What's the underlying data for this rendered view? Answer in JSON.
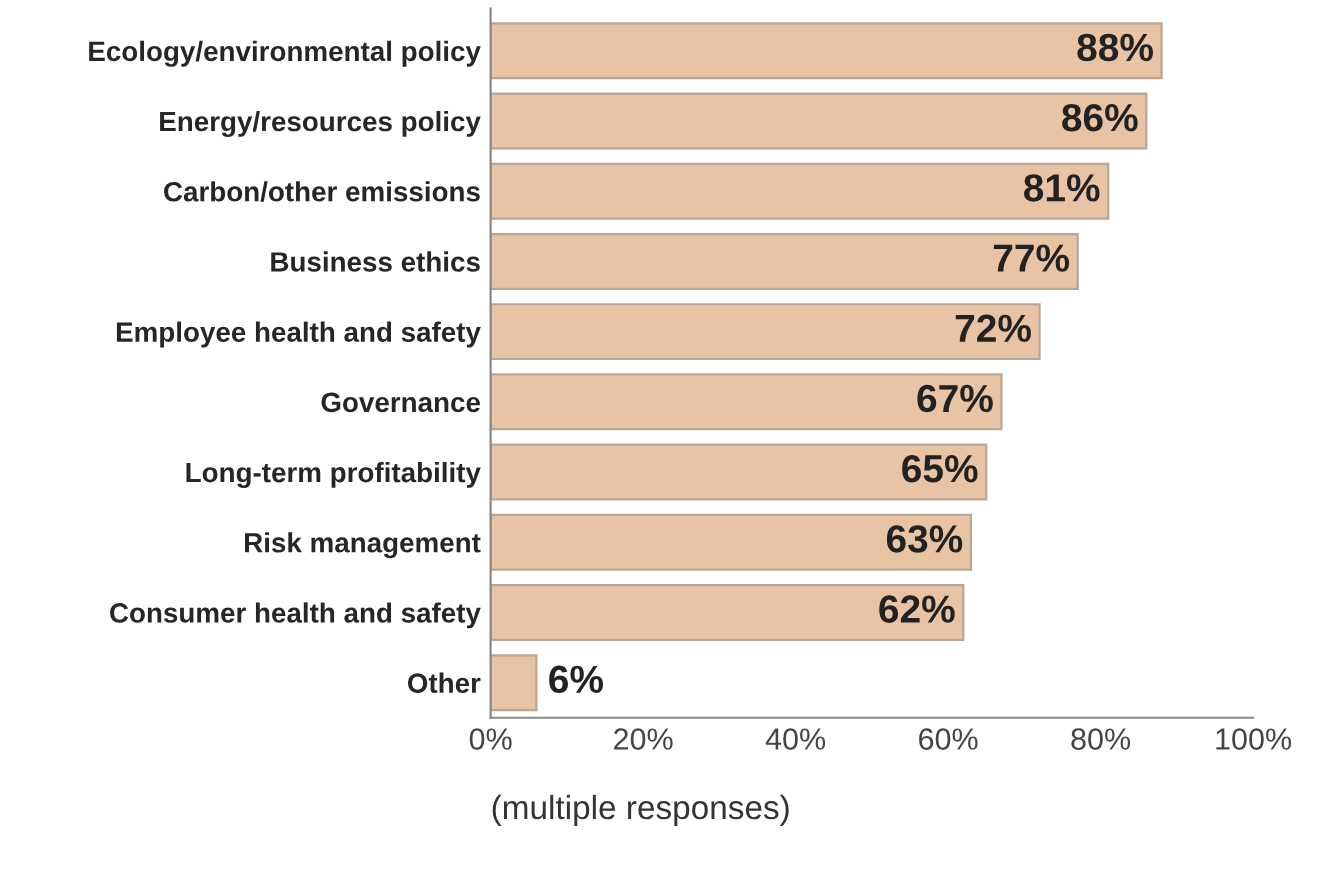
{
  "chart_data": {
    "type": "bar",
    "orientation": "horizontal",
    "categories": [
      "Ecology/environmental policy",
      "Energy/resources policy",
      "Carbon/other emissions",
      "Business ethics",
      "Employee health and safety",
      "Governance",
      "Long-term profitability",
      "Risk management",
      "Consumer health and safety",
      "Other"
    ],
    "values": [
      88,
      86,
      81,
      77,
      72,
      67,
      65,
      63,
      62,
      6
    ],
    "value_labels": [
      "88%",
      "86%",
      "81%",
      "77%",
      "72%",
      "67%",
      "65%",
      "63%",
      "62%",
      "6%"
    ],
    "color": "#e8c4a4",
    "xlim": [
      0,
      100
    ],
    "xticks": [
      {
        "value": 0,
        "label": "0%"
      },
      {
        "value": 20,
        "label": "20%"
      },
      {
        "value": 40,
        "label": "40%"
      },
      {
        "value": 60,
        "label": "60%"
      },
      {
        "value": 80,
        "label": "80%"
      },
      {
        "value": 100,
        "label": "100%"
      }
    ],
    "xlabel": "(multiple responses)",
    "grid": false
  }
}
